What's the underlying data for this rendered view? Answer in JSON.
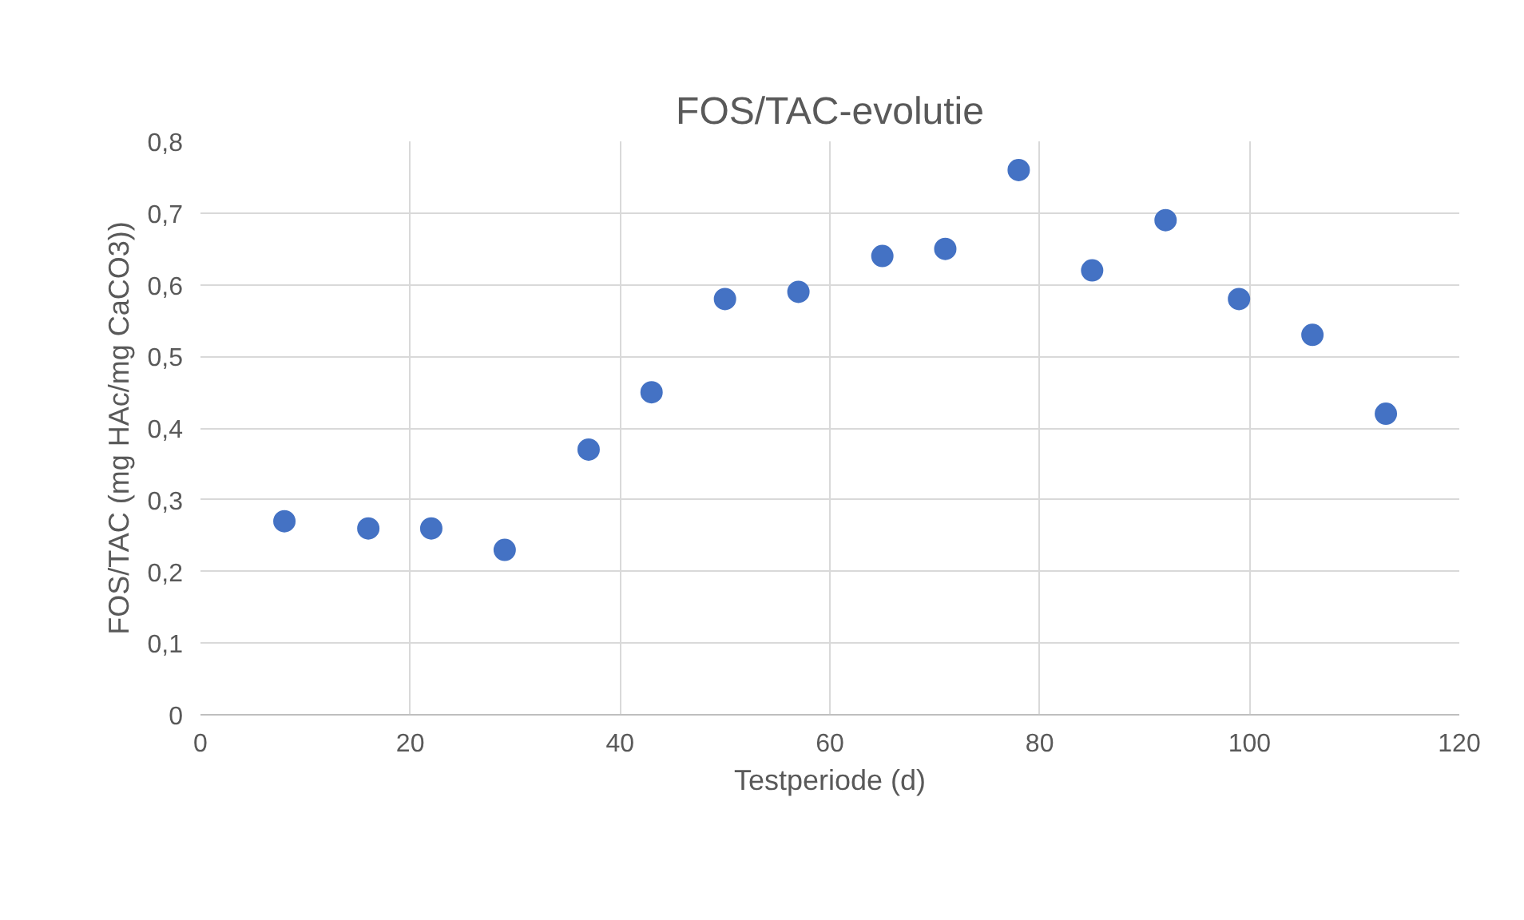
{
  "chart_data": {
    "type": "scatter",
    "title": "FOS/TAC-evolutie",
    "xlabel": "Testperiode (d)",
    "ylabel": "FOS/TAC (mg HAc/mg CaCO3))",
    "x": [
      8,
      16,
      22,
      29,
      37,
      43,
      50,
      57,
      65,
      71,
      78,
      85,
      92,
      99,
      106,
      113
    ],
    "series": [
      {
        "color": "#4472c4",
        "values": [
          0.27,
          0.26,
          0.26,
          0.23,
          0.37,
          0.45,
          0.58,
          0.59,
          0.64,
          0.65,
          0.76,
          0.62,
          0.69,
          0.58,
          0.53,
          0.42
        ]
      }
    ],
    "xlim": [
      0,
      120
    ],
    "xticks": [
      0,
      20,
      40,
      60,
      80,
      100,
      120
    ],
    "ylim": [
      0,
      0.8
    ],
    "yticks": [
      0,
      {
        "value": 0.1,
        "label": "0,1"
      },
      {
        "value": 0.2,
        "label": "0,2"
      },
      {
        "value": 0.3,
        "label": "0,3"
      },
      {
        "value": 0.4,
        "label": "0,4"
      },
      {
        "value": 0.5,
        "label": "0,5"
      },
      {
        "value": 0.6,
        "label": "0,6"
      },
      {
        "value": 0.7,
        "label": "0,7"
      },
      {
        "value": 0.8,
        "label": "0,8"
      }
    ],
    "grid": true,
    "marker": "circle"
  }
}
